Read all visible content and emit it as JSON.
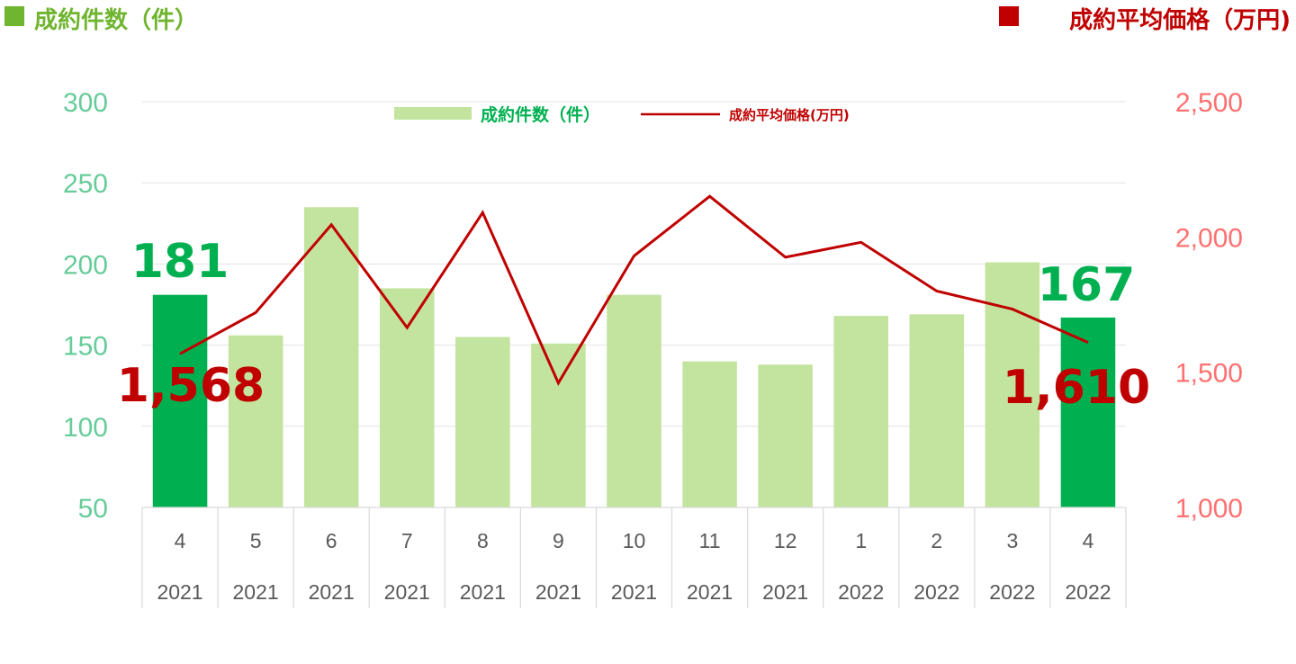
{
  "chart_data": {
    "type": "bar",
    "titles": {
      "left": "成約件数（件）",
      "right": "成約平均価格（万円)"
    },
    "categories": [
      "4",
      "5",
      "6",
      "7",
      "8",
      "9",
      "10",
      "11",
      "12",
      "1",
      "2",
      "3",
      "4"
    ],
    "years": [
      "2021",
      "2021",
      "2021",
      "2021",
      "2021",
      "2021",
      "2021",
      "2021",
      "2021",
      "2022",
      "2022",
      "2022",
      "2022"
    ],
    "series": [
      {
        "name": "成約件数（件）",
        "type": "bar",
        "axis": "left",
        "values": [
          181,
          156,
          235,
          185,
          155,
          151,
          181,
          140,
          138,
          168,
          169,
          201,
          167
        ],
        "highlight_indices": [
          0,
          12
        ]
      },
      {
        "name": "成約平均価格(万円)",
        "type": "line",
        "axis": "right",
        "values": [
          1568,
          1720,
          2045,
          1665,
          2090,
          1460,
          1930,
          2150,
          1925,
          1980,
          1800,
          1733,
          1610
        ]
      }
    ],
    "y_left": {
      "ylim": [
        50,
        300
      ],
      "ticks": [
        "300",
        "250",
        "200",
        "150",
        "100",
        "50"
      ],
      "tick_values": [
        300,
        250,
        200,
        150,
        100,
        50
      ]
    },
    "y_right": {
      "ylim": [
        1000,
        2500
      ],
      "ticks": [
        "2,500",
        "2,000",
        "1,500",
        "1,000"
      ],
      "tick_values": [
        2500,
        2000,
        1500,
        1000
      ]
    },
    "annotations": {
      "first_count": "181",
      "last_count": "167",
      "first_price": "1,568",
      "last_price": "1,610"
    },
    "grid": true,
    "legend_position": "top-center"
  },
  "colors": {
    "bar": "#c3e49e",
    "bar_highlight": "#00b050",
    "line": "#c00000",
    "left_title": "#70b530",
    "right_title": "#c00000",
    "left_axis": "#66cc99",
    "right_axis": "#ff7070",
    "legend_count_text": "#00b050",
    "callout_count": "#00b050",
    "callout_price": "#c00000",
    "grid": "#e3e3e3",
    "category_border": "#d9d9d9"
  }
}
